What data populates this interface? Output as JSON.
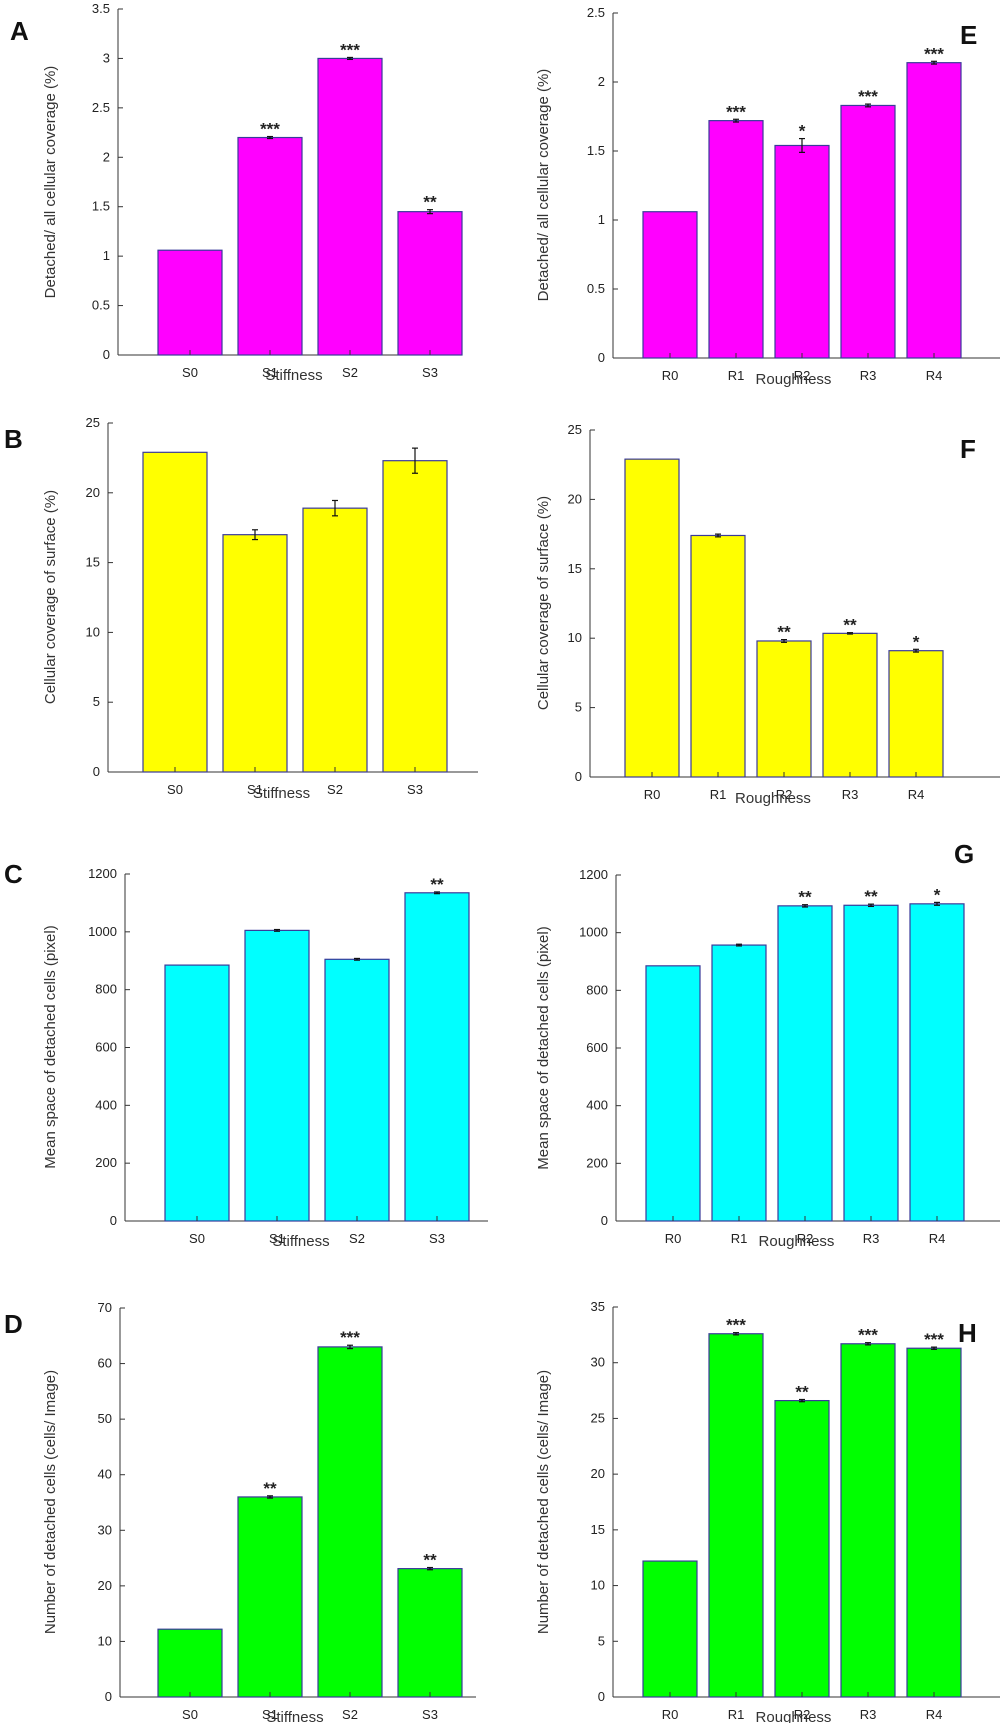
{
  "colors": {
    "magenta": "#ff00ff",
    "yellow": "#ffff00",
    "cyan": "#00ffff",
    "green": "#00ff00",
    "bar_edge": "#3a3a9a"
  },
  "chart_data": [
    {
      "panel": "A",
      "type": "bar",
      "categories": [
        "S0",
        "S1",
        "S2",
        "S3"
      ],
      "values": [
        1.06,
        2.2,
        3.0,
        1.45
      ],
      "errors": [
        0.0,
        0.01,
        0.01,
        0.02
      ],
      "significance": [
        "",
        "***",
        "***",
        "**"
      ],
      "xlabel": "Stiffness",
      "ylabel": "Detached/ all cellular coverage (%)",
      "ylim": [
        0,
        3.5
      ],
      "yticks": [
        0,
        0.5,
        1,
        1.5,
        2,
        2.5,
        3,
        3.5
      ],
      "ytick_labels": [
        "0",
        "0.5",
        "1",
        "1.5",
        "2",
        "2.5",
        "3",
        "3.5"
      ],
      "color": "#ff00ff"
    },
    {
      "panel": "E",
      "type": "bar",
      "categories": [
        "R0",
        "R1",
        "R2",
        "R3",
        "R4"
      ],
      "values": [
        1.06,
        1.72,
        1.54,
        1.83,
        2.14
      ],
      "errors": [
        0.0,
        0.01,
        0.05,
        0.01,
        0.01
      ],
      "significance": [
        "",
        "***",
        "*",
        "***",
        "***"
      ],
      "xlabel": "Roughness",
      "ylabel": "Detached/ all cellular coverage (%)",
      "ylim": [
        0,
        2.5
      ],
      "yticks": [
        0,
        0.5,
        1,
        1.5,
        2,
        2.5
      ],
      "ytick_labels": [
        "0",
        "0.5",
        "1",
        "1.5",
        "2",
        "2.5"
      ],
      "color": "#ff00ff"
    },
    {
      "panel": "B",
      "type": "bar",
      "categories": [
        "S0",
        "S1",
        "S2",
        "S3"
      ],
      "values": [
        22.9,
        17.0,
        18.9,
        22.3
      ],
      "errors": [
        0.0,
        0.35,
        0.55,
        0.9
      ],
      "significance": [
        "",
        "",
        "",
        ""
      ],
      "xlabel": "Stiffness",
      "ylabel": "Cellular coverage of surface (%)",
      "ylim": [
        0,
        25
      ],
      "yticks": [
        0,
        5,
        10,
        15,
        20,
        25
      ],
      "ytick_labels": [
        "0",
        "5",
        "10",
        "15",
        "20",
        "25"
      ],
      "color": "#ffff00"
    },
    {
      "panel": "F",
      "type": "bar",
      "categories": [
        "R0",
        "R1",
        "R2",
        "R3",
        "R4"
      ],
      "values": [
        22.9,
        17.4,
        9.8,
        10.35,
        9.1
      ],
      "errors": [
        0.0,
        0.1,
        0.1,
        0.05,
        0.1
      ],
      "significance": [
        "",
        "",
        "**",
        "**",
        "*"
      ],
      "xlabel": "Roughness",
      "ylabel": "Cellular coverage of surface (%)",
      "ylim": [
        0,
        25
      ],
      "yticks": [
        0,
        5,
        10,
        15,
        20,
        25
      ],
      "ytick_labels": [
        "0",
        "5",
        "10",
        "15",
        "20",
        "25"
      ],
      "color": "#ffff00"
    },
    {
      "panel": "C",
      "type": "bar",
      "categories": [
        "S0",
        "S1",
        "S2",
        "S3"
      ],
      "values": [
        885,
        1005,
        905,
        1135
      ],
      "errors": [
        0,
        3,
        3,
        3
      ],
      "significance": [
        "",
        "",
        "",
        "**"
      ],
      "xlabel": "Stiffness",
      "ylabel": "Mean space of detached cells (pixel)",
      "ylim": [
        0,
        1200
      ],
      "yticks": [
        0,
        200,
        400,
        600,
        800,
        1000,
        1200
      ],
      "ytick_labels": [
        "0",
        "200",
        "400",
        "600",
        "800",
        "1000",
        "1200"
      ],
      "color": "#00ffff"
    },
    {
      "panel": "G",
      "type": "bar",
      "categories": [
        "R0",
        "R1",
        "R2",
        "R3",
        "R4"
      ],
      "values": [
        885,
        957,
        1093,
        1095,
        1100
      ],
      "errors": [
        0,
        3,
        4,
        4,
        5
      ],
      "significance": [
        "",
        "",
        "**",
        "**",
        "*"
      ],
      "xlabel": "Roughness",
      "ylabel": "Mean space of detached cells (pixel)",
      "ylim": [
        0,
        1200
      ],
      "yticks": [
        0,
        200,
        400,
        600,
        800,
        1000,
        1200
      ],
      "ytick_labels": [
        "0",
        "200",
        "400",
        "600",
        "800",
        "1000",
        "1200"
      ],
      "color": "#00ffff"
    },
    {
      "panel": "D",
      "type": "bar",
      "categories": [
        "S0",
        "S1",
        "S2",
        "S3"
      ],
      "values": [
        12.2,
        36.0,
        63.0,
        23.1
      ],
      "errors": [
        0.0,
        0.2,
        0.3,
        0.2
      ],
      "significance": [
        "",
        "**",
        "***",
        "**"
      ],
      "xlabel": "Stiffness",
      "ylabel": "Number of detached cells (cells/ Image)",
      "ylim": [
        0,
        70
      ],
      "yticks": [
        0,
        10,
        20,
        30,
        40,
        50,
        60,
        70
      ],
      "ytick_labels": [
        "0",
        "10",
        "20",
        "30",
        "40",
        "50",
        "60",
        "70"
      ],
      "color": "#00ff00"
    },
    {
      "panel": "H",
      "type": "bar",
      "categories": [
        "R0",
        "R1",
        "R2",
        "R3",
        "R4"
      ],
      "values": [
        12.2,
        32.6,
        26.6,
        31.7,
        31.3
      ],
      "errors": [
        0.0,
        0.1,
        0.1,
        0.1,
        0.1
      ],
      "significance": [
        "",
        "***",
        "**",
        "***",
        "***"
      ],
      "xlabel": "Roughness",
      "ylabel": "Number of detached cells (cells/ Image)",
      "ylim": [
        0,
        35
      ],
      "yticks": [
        0,
        5,
        10,
        15,
        20,
        25,
        30,
        35
      ],
      "ytick_labels": [
        "0",
        "5",
        "10",
        "15",
        "20",
        "25",
        "30",
        "35"
      ],
      "color": "#00ff00"
    }
  ]
}
